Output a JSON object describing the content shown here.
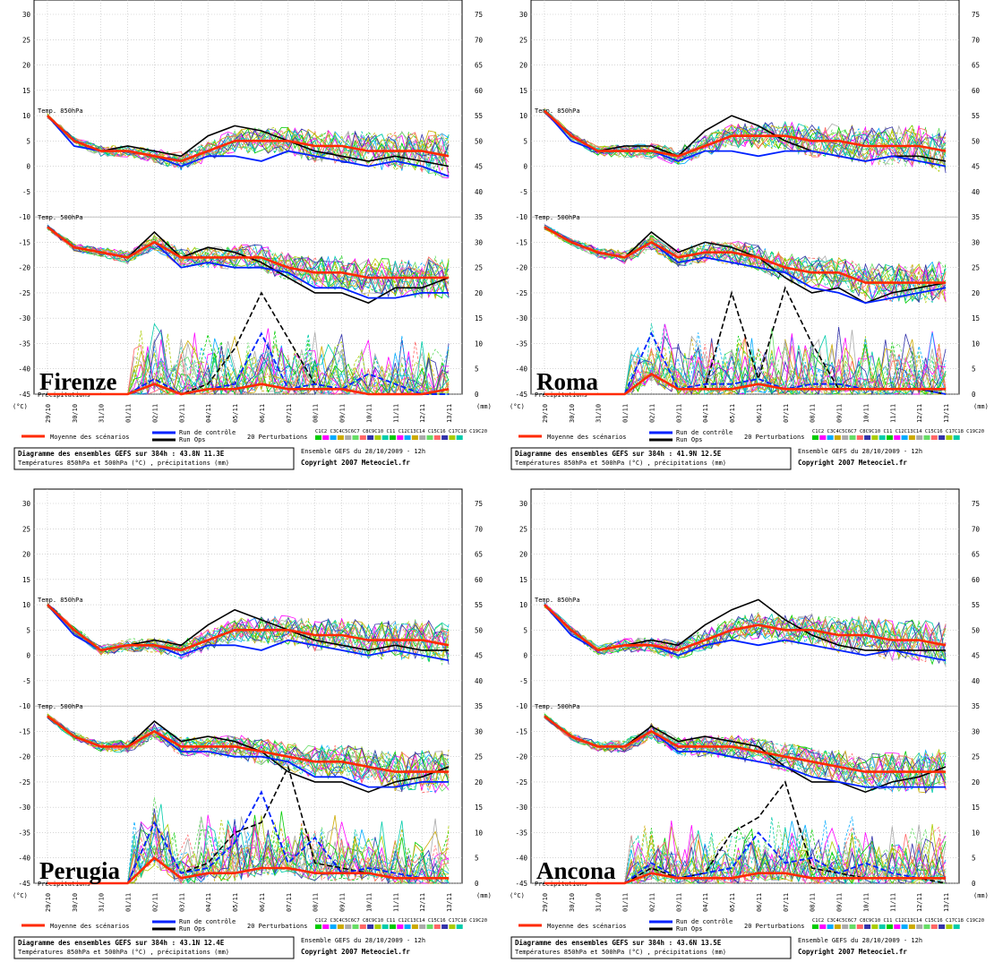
{
  "common": {
    "dates": [
      "29/10",
      "30/10",
      "31/10",
      "01/11",
      "02/11",
      "03/11",
      "04/11",
      "05/11",
      "06/11",
      "07/11",
      "08/11",
      "09/11",
      "10/11",
      "11/11",
      "12/11",
      "13/11"
    ],
    "left_ticks": [
      "30",
      "25",
      "20",
      "15",
      "10",
      "5",
      "0",
      "-5",
      "-10",
      "-15",
      "-20",
      "-25",
      "-30",
      "-35",
      "-40",
      "-45"
    ],
    "right_ticks": [
      "75",
      "70",
      "65",
      "60",
      "55",
      "50",
      "45",
      "40",
      "35",
      "30",
      "25",
      "20",
      "15",
      "10",
      "5",
      "0"
    ],
    "unit_left": "(°C)",
    "unit_right": "(mm)",
    "label_850": "Temp. 850hPa",
    "label_500": "Temp. 500hPa",
    "label_precip": "Précipitations",
    "legend_mean": "Moyenne des scénarios",
    "legend_control_top": "Run de contrôle",
    "legend_control_bottom": "Run Ops",
    "legend_perturb": "20 Perturbations",
    "legend_numbers": "C1C2 C3C4C5C6C7 C8C9C10 C11 C12C13C14 C15C16 C17C18 C19C20",
    "footer_line2": "Températures 850hPa et 500hPa (°C) , précipitations (mm)",
    "footer_ensemble": "Ensemble GEFS du 28/10/2009 - 12h",
    "footer_copyright": "Copyright 2007 Meteociel.fr",
    "colors": {
      "mean": "#ff2a00",
      "control": "#0022ff",
      "ops": "#000000",
      "grid": "#bdbdbd",
      "perturbations": [
        "#00cc00",
        "#ff00ff",
        "#00aaff",
        "#ccaa00",
        "#aaaaaa",
        "#66dd66",
        "#ff6666",
        "#3333aa",
        "#aacc00",
        "#00ccaa"
      ]
    }
  },
  "chart_data": [
    {
      "type": "line",
      "title": "Firenze",
      "footer_line1": "Diagramme des ensembles GEFS sur 384h : 43.8N 11.3E",
      "xlabels": [
        "29/10",
        "30/10",
        "31/10",
        "01/11",
        "02/11",
        "03/11",
        "04/11",
        "05/11",
        "06/11",
        "07/11",
        "08/11",
        "09/11",
        "10/11",
        "11/11",
        "12/11",
        "13/11"
      ],
      "ylim_temp": [
        -45,
        30
      ],
      "ylim_precip_mm": [
        0,
        75
      ],
      "series": [
        {
          "name": "Moyenne des scénarios",
          "panel": "850hPa",
          "values": [
            10,
            5,
            3,
            3,
            2,
            1,
            3,
            5,
            5,
            5,
            4,
            4,
            3,
            3,
            3,
            2
          ]
        },
        {
          "name": "Run de contrôle",
          "panel": "850hPa",
          "values": [
            10,
            4,
            3,
            3,
            2,
            0,
            2,
            2,
            1,
            3,
            2,
            1,
            0,
            1,
            0,
            -2
          ]
        },
        {
          "name": "Run Ops",
          "panel": "850hPa",
          "values": [
            10,
            5,
            3,
            4,
            3,
            2,
            6,
            8,
            7,
            5,
            3,
            2,
            1,
            2,
            1,
            0
          ]
        },
        {
          "name": "Moyenne des scénarios",
          "panel": "500hPa",
          "values": [
            -12,
            -16,
            -17,
            -18,
            -15,
            -18,
            -18,
            -18,
            -18,
            -20,
            -21,
            -21,
            -22,
            -22,
            -22,
            -22
          ]
        },
        {
          "name": "Run de contrôle",
          "panel": "500hPa",
          "values": [
            -12,
            -16,
            -17,
            -18,
            -15,
            -20,
            -19,
            -20,
            -20,
            -21,
            -24,
            -24,
            -26,
            -26,
            -25,
            -25
          ]
        },
        {
          "name": "Run Ops",
          "panel": "500hPa",
          "values": [
            -12,
            -16,
            -17,
            -18,
            -13,
            -18,
            -16,
            -17,
            -19,
            -22,
            -25,
            -25,
            -27,
            -24,
            -24,
            -22
          ]
        },
        {
          "name": "Moyenne des scénarios",
          "panel": "precip_mm",
          "values": [
            0,
            0,
            0,
            0,
            2,
            0,
            1,
            1,
            2,
            1,
            1,
            1,
            0,
            0,
            0,
            1
          ]
        },
        {
          "name": "Run de contrôle",
          "panel": "precip_mm",
          "values": [
            0,
            0,
            0,
            0,
            3,
            0,
            1,
            2,
            12,
            1,
            2,
            1,
            4,
            2,
            0,
            0
          ]
        },
        {
          "name": "Run Ops",
          "panel": "precip_mm",
          "values": [
            0,
            0,
            0,
            0,
            3,
            0,
            2,
            9,
            20,
            11,
            2,
            1,
            0,
            0,
            0,
            0
          ]
        }
      ]
    },
    {
      "type": "line",
      "title": "Roma",
      "footer_line1": "Diagramme des ensembles GEFS sur 384h : 41.9N 12.5E",
      "xlabels": [
        "29/10",
        "30/10",
        "31/10",
        "01/11",
        "02/11",
        "03/11",
        "04/11",
        "05/11",
        "06/11",
        "07/11",
        "08/11",
        "09/11",
        "10/11",
        "11/11",
        "12/11",
        "13/11"
      ],
      "ylim_temp": [
        -45,
        30
      ],
      "ylim_precip_mm": [
        0,
        75
      ],
      "series": [
        {
          "name": "Moyenne des scénarios",
          "panel": "850hPa",
          "values": [
            11,
            6,
            3,
            3,
            3,
            2,
            4,
            6,
            6,
            6,
            5,
            5,
            4,
            4,
            4,
            3
          ]
        },
        {
          "name": "Run de contrôle",
          "panel": "850hPa",
          "values": [
            11,
            5,
            3,
            3,
            3,
            1,
            3,
            3,
            2,
            3,
            3,
            2,
            1,
            2,
            1,
            0
          ]
        },
        {
          "name": "Run Ops",
          "panel": "850hPa",
          "values": [
            11,
            6,
            3,
            4,
            4,
            2,
            7,
            10,
            8,
            5,
            3,
            2,
            1,
            2,
            2,
            1
          ]
        },
        {
          "name": "Moyenne des scénarios",
          "panel": "500hPa",
          "values": [
            -12,
            -15,
            -17,
            -18,
            -15,
            -18,
            -17,
            -17,
            -18,
            -20,
            -21,
            -21,
            -23,
            -23,
            -23,
            -23
          ]
        },
        {
          "name": "Run de contrôle",
          "panel": "500hPa",
          "values": [
            -12,
            -15,
            -17,
            -18,
            -15,
            -19,
            -18,
            -19,
            -20,
            -21,
            -24,
            -25,
            -27,
            -26,
            -25,
            -24
          ]
        },
        {
          "name": "Run Ops",
          "panel": "500hPa",
          "values": [
            -12,
            -15,
            -17,
            -18,
            -13,
            -17,
            -15,
            -16,
            -18,
            -22,
            -25,
            -24,
            -27,
            -25,
            -24,
            -23
          ]
        },
        {
          "name": "Moyenne des scénarios",
          "panel": "precip_mm",
          "values": [
            0,
            0,
            0,
            0,
            4,
            1,
            1,
            1,
            2,
            1,
            1,
            1,
            1,
            1,
            1,
            1
          ]
        },
        {
          "name": "Run de contrôle",
          "panel": "precip_mm",
          "values": [
            0,
            0,
            0,
            0,
            12,
            1,
            2,
            2,
            3,
            1,
            2,
            2,
            1,
            1,
            1,
            0
          ]
        },
        {
          "name": "Run Ops",
          "panel": "precip_mm",
          "values": [
            0,
            0,
            0,
            0,
            4,
            1,
            1,
            20,
            3,
            21,
            10,
            1,
            1,
            1,
            1,
            0
          ]
        }
      ]
    },
    {
      "type": "line",
      "title": "Perugia",
      "footer_line1": "Diagramme des ensembles GEFS sur 384h : 43.1N 12.4E",
      "xlabels": [
        "29/10",
        "30/10",
        "31/10",
        "01/11",
        "02/11",
        "03/11",
        "04/11",
        "05/11",
        "06/11",
        "07/11",
        "08/11",
        "09/11",
        "10/11",
        "11/11",
        "12/11",
        "13/11"
      ],
      "ylim_temp": [
        -45,
        30
      ],
      "ylim_precip_mm": [
        0,
        75
      ],
      "series": [
        {
          "name": "Moyenne des scénarios",
          "panel": "850hPa",
          "values": [
            10,
            5,
            1,
            2,
            2,
            1,
            3,
            5,
            5,
            5,
            4,
            4,
            3,
            3,
            3,
            2
          ]
        },
        {
          "name": "Run de contrôle",
          "panel": "850hPa",
          "values": [
            10,
            4,
            1,
            2,
            2,
            0,
            2,
            2,
            1,
            3,
            2,
            1,
            0,
            1,
            0,
            -1
          ]
        },
        {
          "name": "Run Ops",
          "panel": "850hPa",
          "values": [
            10,
            5,
            1,
            2,
            3,
            2,
            6,
            9,
            7,
            5,
            3,
            2,
            1,
            2,
            1,
            1
          ]
        },
        {
          "name": "Moyenne des scénarios",
          "panel": "500hPa",
          "values": [
            -12,
            -16,
            -18,
            -18,
            -15,
            -18,
            -18,
            -18,
            -19,
            -20,
            -21,
            -21,
            -22,
            -23,
            -23,
            -23
          ]
        },
        {
          "name": "Run de contrôle",
          "panel": "500hPa",
          "values": [
            -12,
            -16,
            -18,
            -18,
            -15,
            -19,
            -19,
            -20,
            -20,
            -21,
            -24,
            -24,
            -26,
            -26,
            -25,
            -25
          ]
        },
        {
          "name": "Run Ops",
          "panel": "500hPa",
          "values": [
            -12,
            -16,
            -18,
            -18,
            -13,
            -17,
            -16,
            -17,
            -19,
            -23,
            -25,
            -25,
            -27,
            -25,
            -24,
            -22
          ]
        },
        {
          "name": "Moyenne des scénarios",
          "panel": "precip_mm",
          "values": [
            0,
            0,
            0,
            0,
            5,
            1,
            2,
            2,
            3,
            3,
            2,
            2,
            2,
            1,
            1,
            1
          ]
        },
        {
          "name": "Run de contrôle",
          "panel": "precip_mm",
          "values": [
            0,
            0,
            0,
            0,
            12,
            2,
            3,
            8,
            18,
            4,
            9,
            2,
            3,
            2,
            1,
            1
          ]
        },
        {
          "name": "Run Ops",
          "panel": "precip_mm",
          "values": [
            0,
            0,
            0,
            0,
            12,
            2,
            4,
            10,
            12,
            23,
            4,
            3,
            2,
            1,
            1,
            1
          ]
        }
      ]
    },
    {
      "type": "line",
      "title": "Ancona",
      "footer_line1": "Diagramme des ensembles GEFS sur 384h : 43.6N 13.5E",
      "xlabels": [
        "29/10",
        "30/10",
        "31/10",
        "01/11",
        "02/11",
        "03/11",
        "04/11",
        "05/11",
        "06/11",
        "07/11",
        "08/11",
        "09/11",
        "10/11",
        "11/11",
        "12/11",
        "13/11"
      ],
      "ylim_temp": [
        -45,
        30
      ],
      "ylim_precip_mm": [
        0,
        75
      ],
      "series": [
        {
          "name": "Moyenne des scénarios",
          "panel": "850hPa",
          "values": [
            10,
            5,
            1,
            2,
            2,
            1,
            3,
            5,
            6,
            5,
            5,
            4,
            4,
            3,
            3,
            2
          ]
        },
        {
          "name": "Run de contrôle",
          "panel": "850hPa",
          "values": [
            10,
            4,
            1,
            2,
            2,
            0,
            2,
            3,
            2,
            3,
            2,
            1,
            0,
            1,
            0,
            -1
          ]
        },
        {
          "name": "Run Ops",
          "panel": "850hPa",
          "values": [
            10,
            5,
            1,
            2,
            3,
            2,
            6,
            9,
            11,
            7,
            4,
            2,
            1,
            1,
            1,
            1
          ]
        },
        {
          "name": "Moyenne des scénarios",
          "panel": "500hPa",
          "values": [
            -12,
            -16,
            -18,
            -18,
            -15,
            -18,
            -18,
            -18,
            -19,
            -20,
            -21,
            -22,
            -23,
            -23,
            -23,
            -23
          ]
        },
        {
          "name": "Run de contrôle",
          "panel": "500hPa",
          "values": [
            -12,
            -16,
            -18,
            -18,
            -15,
            -19,
            -19,
            -20,
            -21,
            -22,
            -24,
            -25,
            -26,
            -26,
            -26,
            -26
          ]
        },
        {
          "name": "Run Ops",
          "panel": "500hPa",
          "values": [
            -12,
            -16,
            -18,
            -18,
            -14,
            -17,
            -16,
            -17,
            -18,
            -22,
            -25,
            -25,
            -27,
            -25,
            -24,
            -22
          ]
        },
        {
          "name": "Moyenne des scénarios",
          "panel": "precip_mm",
          "values": [
            0,
            0,
            0,
            0,
            2,
            1,
            1,
            1,
            2,
            2,
            1,
            1,
            1,
            1,
            1,
            1
          ]
        },
        {
          "name": "Run de contrôle",
          "panel": "precip_mm",
          "values": [
            0,
            0,
            0,
            0,
            4,
            1,
            2,
            3,
            10,
            4,
            5,
            2,
            4,
            2,
            1,
            1
          ]
        },
        {
          "name": "Run Ops",
          "panel": "precip_mm",
          "values": [
            0,
            0,
            0,
            0,
            3,
            1,
            2,
            10,
            13,
            20,
            3,
            2,
            1,
            1,
            1,
            0
          ]
        }
      ]
    }
  ]
}
